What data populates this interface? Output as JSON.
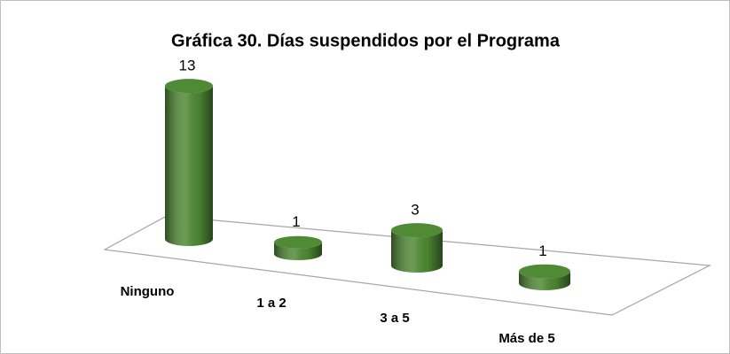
{
  "chart_data": {
    "type": "bar",
    "title": "Gráfica 30. Días suspendidos por el Programa",
    "categories": [
      "Ninguno",
      "1 a 2",
      "3 a 5",
      "Más de 5"
    ],
    "values": [
      13,
      1,
      3,
      1
    ],
    "color": "#4f8a34"
  }
}
